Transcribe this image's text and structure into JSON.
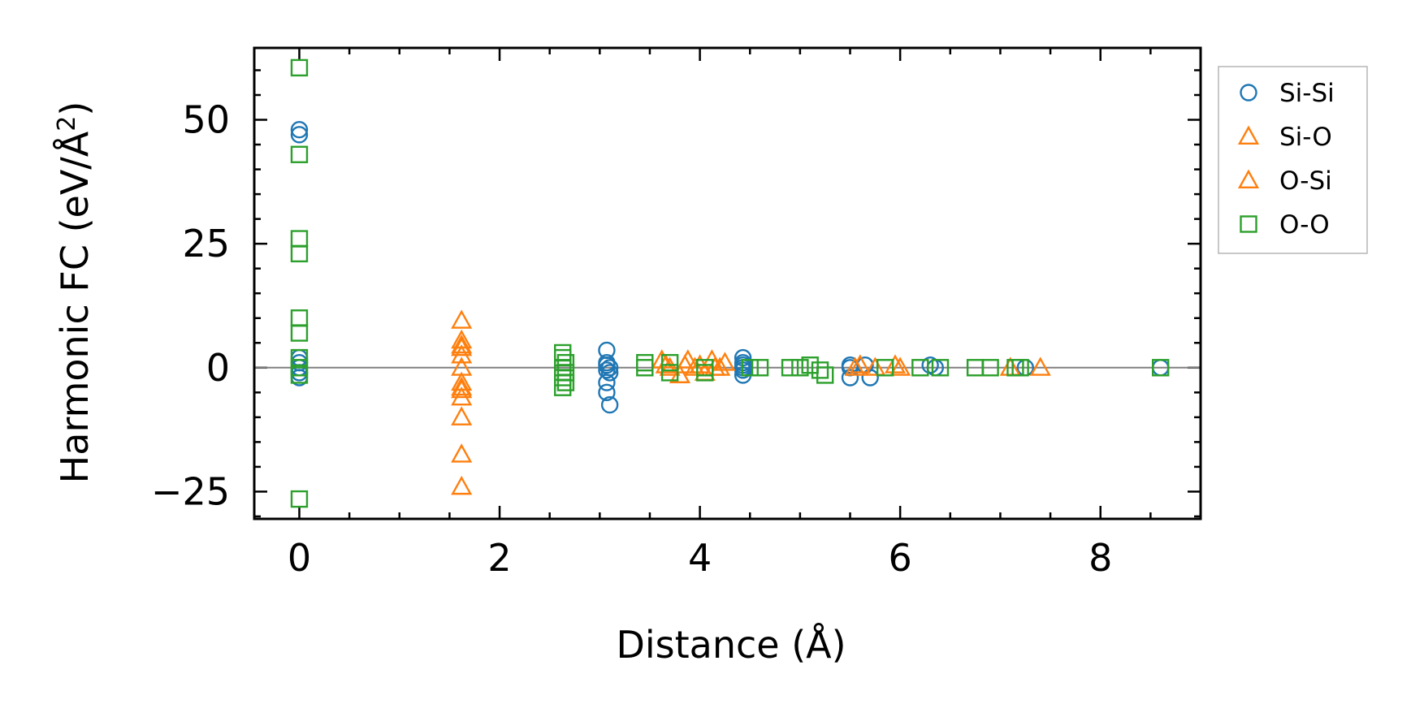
{
  "chart_data": {
    "type": "scatter",
    "title": "",
    "xlabel": "Distance (Å)",
    "ylabel_main": "Harmonic FC (eV/Å",
    "ylabel_sup": "2",
    "ylabel_close": ")",
    "xlim": [
      -0.45,
      9.0
    ],
    "ylim": [
      -30.5,
      64.5
    ],
    "xticks": [
      0,
      2,
      4,
      6,
      8
    ],
    "xtick_labels": [
      "0",
      "2",
      "4",
      "6",
      "8"
    ],
    "yticks": [
      -25,
      0,
      25,
      50
    ],
    "ytick_labels": [
      "−25",
      "0",
      "25",
      "50"
    ],
    "zero_line": 0,
    "legend_position": "outside-right-top",
    "colors": {
      "blue": "#1f77b4",
      "orange": "#ff7f0e",
      "green": "#2ca02c",
      "zero_line": "#808080"
    },
    "series": [
      {
        "name": "Si-Si",
        "marker": "circle",
        "color": "#1f77b4",
        "points": [
          [
            0,
            48
          ],
          [
            0,
            47
          ],
          [
            0,
            2
          ],
          [
            0,
            1
          ],
          [
            0,
            0
          ],
          [
            0,
            -1
          ],
          [
            0,
            -2
          ],
          [
            3.07,
            3.5
          ],
          [
            3.07,
            1
          ],
          [
            3.07,
            0.5
          ],
          [
            3.1,
            0
          ],
          [
            3.07,
            -0.5
          ],
          [
            3.1,
            -1
          ],
          [
            3.07,
            -3
          ],
          [
            3.07,
            -5
          ],
          [
            3.1,
            -7.5
          ],
          [
            4.43,
            2
          ],
          [
            4.43,
            1
          ],
          [
            4.43,
            0.5
          ],
          [
            4.43,
            0
          ],
          [
            4.43,
            -0.5
          ],
          [
            4.43,
            -1.5
          ],
          [
            5.5,
            0.5
          ],
          [
            5.5,
            0
          ],
          [
            5.5,
            -2
          ],
          [
            5.7,
            -2
          ],
          [
            5.65,
            0.5
          ],
          [
            6.35,
            0
          ],
          [
            6.3,
            0.5
          ],
          [
            7.25,
            0
          ],
          [
            8.6,
            0
          ]
        ]
      },
      {
        "name": "Si-O",
        "marker": "triangle",
        "color": "#ff7f0e",
        "points": [
          [
            1.62,
            9.5
          ],
          [
            1.62,
            5.5
          ],
          [
            1.62,
            4
          ],
          [
            1.62,
            2.5
          ],
          [
            1.62,
            0
          ],
          [
            1.62,
            -3
          ],
          [
            1.62,
            -4.5
          ],
          [
            1.62,
            -6
          ],
          [
            1.62,
            -10
          ],
          [
            1.62,
            -17.5
          ],
          [
            1.62,
            -24
          ],
          [
            3.62,
            1.5
          ],
          [
            3.7,
            0
          ],
          [
            3.8,
            -1.5
          ],
          [
            3.88,
            1.5
          ],
          [
            3.95,
            0
          ],
          [
            4.05,
            -1
          ],
          [
            4.12,
            1.5
          ],
          [
            4.2,
            0
          ],
          [
            4.25,
            1
          ],
          [
            5.55,
            0
          ],
          [
            5.75,
            0
          ],
          [
            6.0,
            0
          ],
          [
            7.1,
            0
          ],
          [
            7.4,
            0
          ]
        ]
      },
      {
        "name": "O-Si",
        "marker": "triangle",
        "color": "#ff7f0e",
        "points": [
          [
            1.62,
            4.5
          ],
          [
            1.62,
            -4
          ],
          [
            3.66,
            0.5
          ],
          [
            3.85,
            0.5
          ],
          [
            4.0,
            0.5
          ],
          [
            4.15,
            0
          ],
          [
            5.6,
            0.5
          ],
          [
            5.95,
            0.5
          ]
        ]
      },
      {
        "name": "O-O",
        "marker": "square",
        "color": "#2ca02c",
        "points": [
          [
            0,
            60.5
          ],
          [
            0,
            43
          ],
          [
            0,
            26
          ],
          [
            0,
            23
          ],
          [
            0,
            10
          ],
          [
            0,
            7
          ],
          [
            0,
            2
          ],
          [
            0,
            0
          ],
          [
            0,
            -1.5
          ],
          [
            0,
            -26.5
          ],
          [
            2.63,
            3
          ],
          [
            2.63,
            2
          ],
          [
            2.66,
            1
          ],
          [
            2.63,
            0
          ],
          [
            2.66,
            -1
          ],
          [
            2.63,
            -2
          ],
          [
            2.66,
            -3
          ],
          [
            2.63,
            -4
          ],
          [
            3.45,
            1
          ],
          [
            3.45,
            0
          ],
          [
            3.7,
            1
          ],
          [
            3.7,
            -1
          ],
          [
            4.05,
            0
          ],
          [
            4.05,
            -1
          ],
          [
            4.5,
            0
          ],
          [
            4.6,
            0
          ],
          [
            4.9,
            0
          ],
          [
            5.0,
            0
          ],
          [
            5.1,
            0.5
          ],
          [
            5.2,
            -0.5
          ],
          [
            5.25,
            -1.5
          ],
          [
            5.85,
            0
          ],
          [
            6.2,
            0
          ],
          [
            6.4,
            0
          ],
          [
            6.75,
            0
          ],
          [
            6.9,
            0
          ],
          [
            7.15,
            0
          ],
          [
            7.2,
            0
          ],
          [
            8.6,
            0
          ]
        ]
      }
    ]
  }
}
